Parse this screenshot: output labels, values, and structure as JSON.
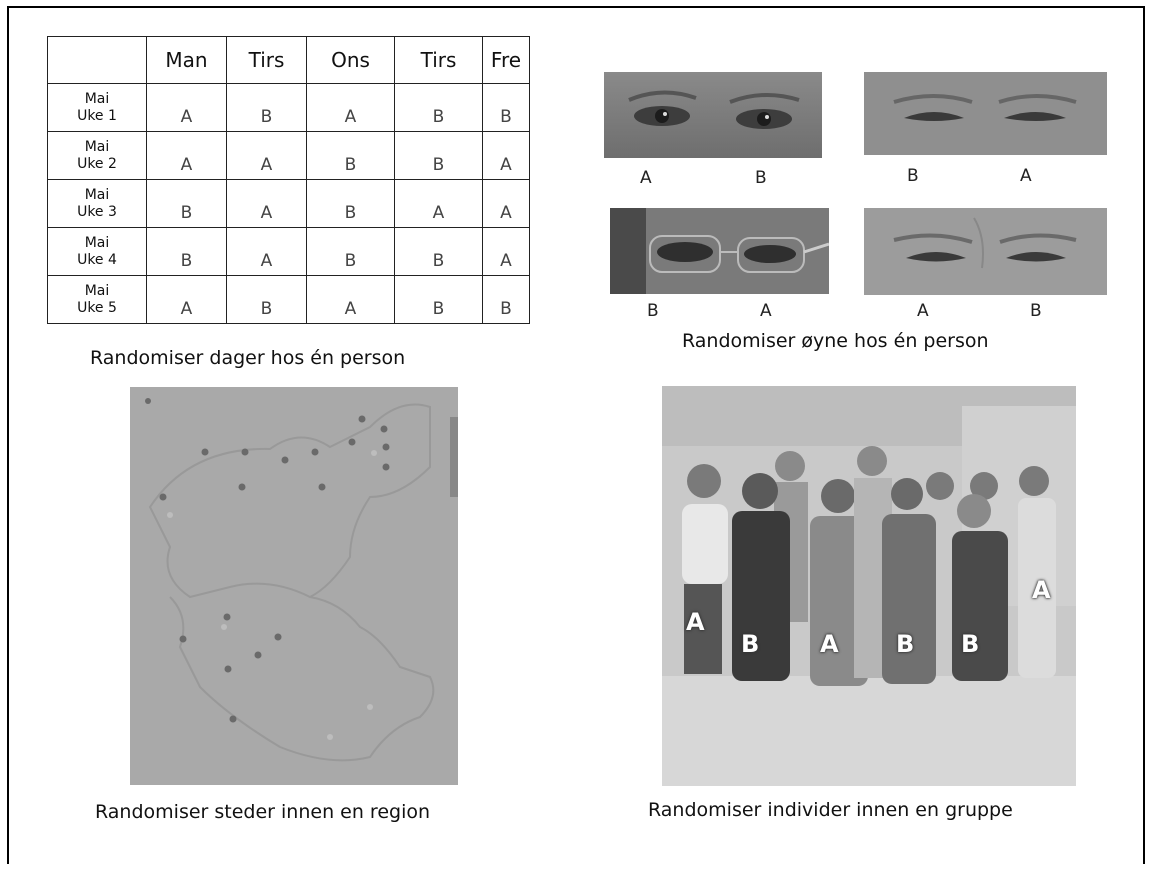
{
  "table": {
    "headers": [
      "",
      "Man",
      "Tirs",
      "Ons",
      "Tirs",
      "Fre"
    ],
    "rows": [
      {
        "label_month": "Mai",
        "label_week": "Uke 1",
        "cells": [
          "A",
          "B",
          "A",
          "B",
          "B"
        ]
      },
      {
        "label_month": "Mai",
        "label_week": "Uke 2",
        "cells": [
          "A",
          "A",
          "B",
          "B",
          "A"
        ]
      },
      {
        "label_month": "Mai",
        "label_week": "Uke 3",
        "cells": [
          "B",
          "A",
          "B",
          "A",
          "A"
        ]
      },
      {
        "label_month": "Mai",
        "label_week": "Uke 4",
        "cells": [
          "B",
          "A",
          "B",
          "B",
          "A"
        ]
      },
      {
        "label_month": "Mai",
        "label_week": "Uke 5",
        "cells": [
          "A",
          "B",
          "A",
          "B",
          "B"
        ]
      }
    ],
    "caption": "Randomiser dager hos én person"
  },
  "eyes": {
    "pairs": [
      {
        "left_label": "A",
        "right_label": "B"
      },
      {
        "left_label": "B",
        "right_label": "A"
      },
      {
        "left_label": "B",
        "right_label": "A"
      },
      {
        "left_label": "A",
        "right_label": "B"
      }
    ],
    "caption": "Randomiser øyne hos én person"
  },
  "map": {
    "caption": "Randomiser steder innen en region"
  },
  "group": {
    "letters": [
      "A",
      "B",
      "A",
      "B",
      "B",
      "A"
    ],
    "caption": "Randomiser individer innen en gruppe"
  },
  "colors": {
    "map_bg": "#a9a9a9",
    "map_border": "#8c8c8c",
    "map_dot": "#6a6a6a",
    "photo_wall": "#c9c9c9",
    "photo_floor": "#d7d7d7"
  }
}
